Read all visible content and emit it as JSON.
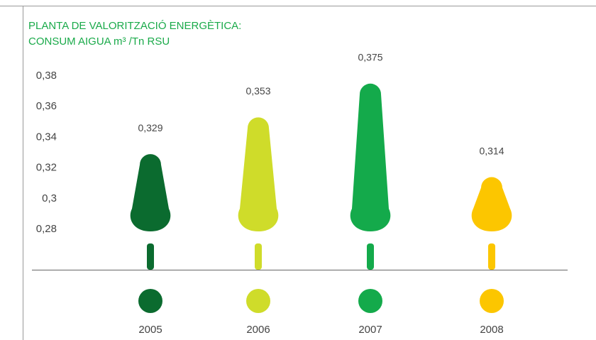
{
  "chart_data": {
    "type": "tree-bar",
    "title": "PLANTA DE VALORITZACIÓ ENERGÈTICA:",
    "subtitle": "CONSUM AIGUA  m³ /Tn RSU",
    "categories": [
      "2005",
      "2006",
      "2007",
      "2008"
    ],
    "values": [
      0.329,
      0.353,
      0.375,
      0.314
    ],
    "value_labels": [
      "0,329",
      "0,353",
      "0,375",
      "0,314"
    ],
    "colors": [
      "#0b6b2f",
      "#cfdc2a",
      "#14aa4b",
      "#fcc600"
    ],
    "ylim": [
      0.28,
      0.38
    ],
    "yticks": [
      {
        "value": 0.28,
        "label": "0,28"
      },
      {
        "value": 0.3,
        "label": "0,3"
      },
      {
        "value": 0.32,
        "label": "0,32"
      },
      {
        "value": 0.34,
        "label": "0,34"
      },
      {
        "value": 0.36,
        "label": "0,36"
      },
      {
        "value": 0.38,
        "label": "0,38"
      }
    ]
  }
}
